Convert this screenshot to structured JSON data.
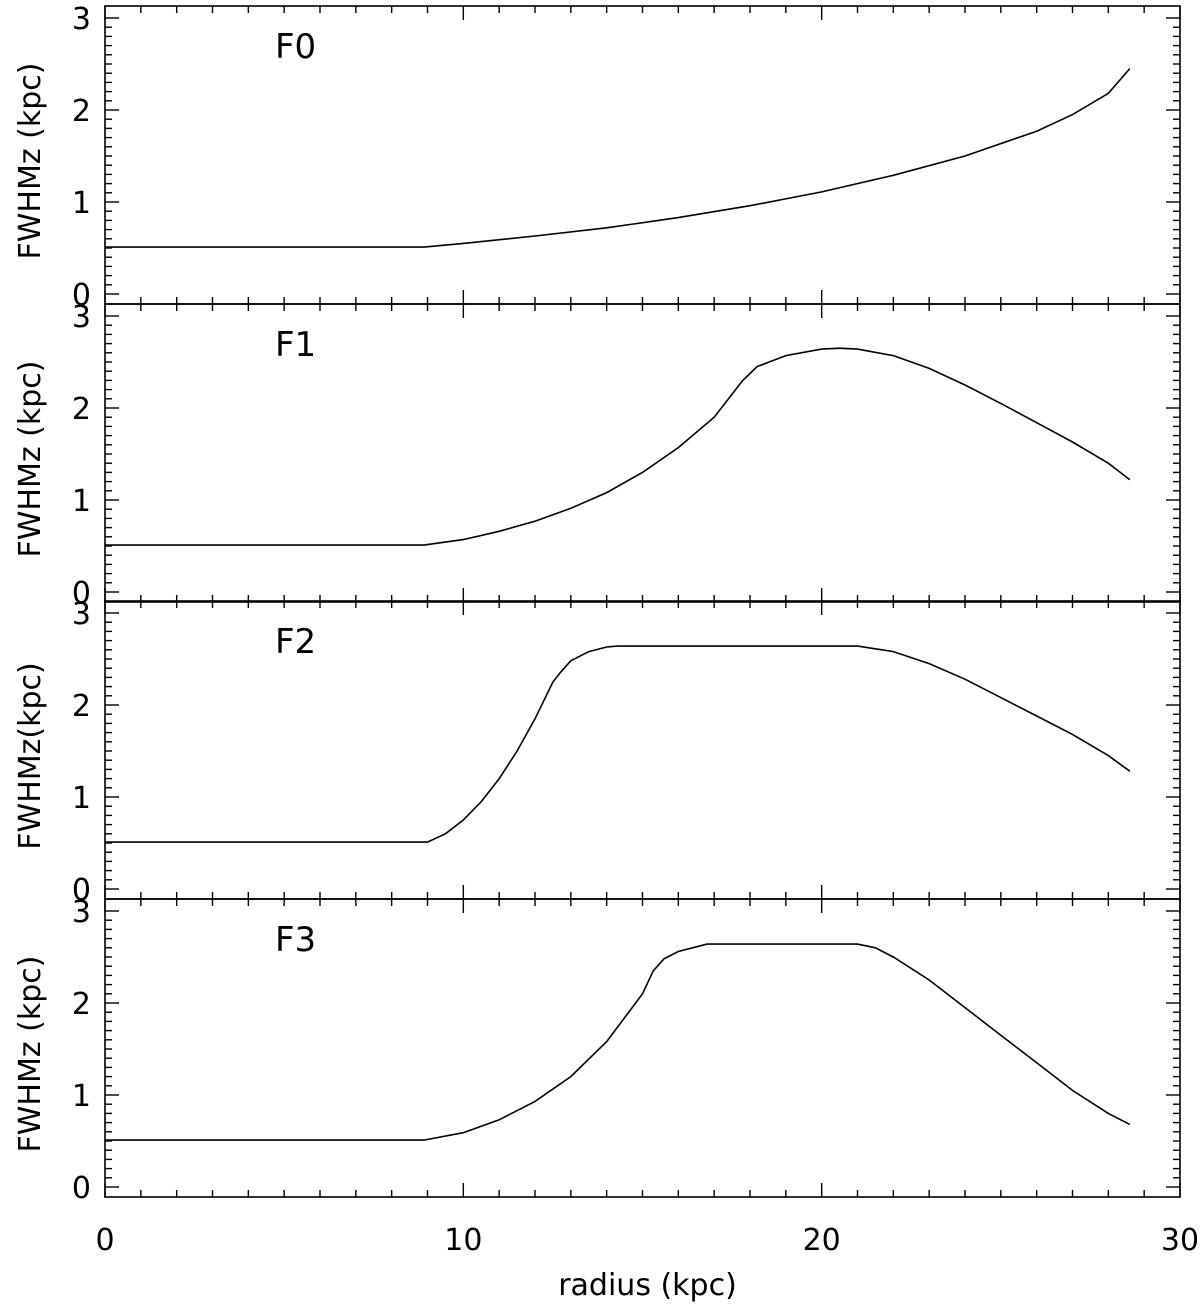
{
  "chart_data": [
    {
      "type": "line",
      "panel_label": "F0",
      "ylabel": "FWHMz  (kpc)",
      "xlim": [
        0,
        30
      ],
      "ylim": [
        0,
        3
      ],
      "yticks": [
        "0",
        "1",
        "2",
        "3"
      ],
      "series": [
        {
          "x": [
            0,
            2,
            4,
            6,
            8,
            8.9,
            10,
            12,
            14,
            16,
            18,
            20,
            22,
            24,
            26,
            27,
            28,
            28.6
          ],
          "y": [
            0.51,
            0.51,
            0.51,
            0.51,
            0.51,
            0.51,
            0.55,
            0.63,
            0.72,
            0.83,
            0.96,
            1.11,
            1.29,
            1.5,
            1.77,
            1.95,
            2.18,
            2.45
          ]
        }
      ]
    },
    {
      "type": "line",
      "panel_label": "F1",
      "ylabel": "FWHMz  (kpc)",
      "xlim": [
        0,
        30
      ],
      "ylim": [
        0,
        3
      ],
      "yticks": [
        "0",
        "1",
        "2",
        "3"
      ],
      "series": [
        {
          "x": [
            0,
            2,
            4,
            6,
            8,
            8.9,
            10,
            11,
            12,
            13,
            14,
            15,
            16,
            17,
            17.8,
            18.2,
            19,
            20,
            20.5,
            21,
            22,
            23,
            24,
            25,
            26,
            27,
            28,
            28.6
          ],
          "y": [
            0.51,
            0.51,
            0.51,
            0.51,
            0.51,
            0.51,
            0.57,
            0.66,
            0.77,
            0.91,
            1.08,
            1.3,
            1.57,
            1.9,
            2.3,
            2.45,
            2.57,
            2.64,
            2.65,
            2.64,
            2.57,
            2.43,
            2.25,
            2.05,
            1.84,
            1.63,
            1.4,
            1.22
          ]
        }
      ]
    },
    {
      "type": "line",
      "panel_label": "F2",
      "ylabel": "FWHMz(kpc)",
      "xlim": [
        0,
        30
      ],
      "ylim": [
        0,
        3
      ],
      "yticks": [
        "0",
        "1",
        "2",
        "3"
      ],
      "series": [
        {
          "x": [
            0,
            2,
            4,
            6,
            8,
            9,
            9.5,
            10,
            10.5,
            11,
            11.5,
            12,
            12.5,
            12.7,
            13,
            13.5,
            14,
            14.3,
            16,
            18,
            20,
            21,
            22,
            23,
            24,
            25,
            26,
            27,
            28,
            28.6
          ],
          "y": [
            0.51,
            0.51,
            0.51,
            0.51,
            0.51,
            0.51,
            0.6,
            0.75,
            0.95,
            1.2,
            1.5,
            1.85,
            2.25,
            2.35,
            2.48,
            2.58,
            2.63,
            2.64,
            2.64,
            2.64,
            2.64,
            2.64,
            2.58,
            2.45,
            2.28,
            2.08,
            1.88,
            1.68,
            1.45,
            1.28
          ]
        }
      ]
    },
    {
      "type": "line",
      "panel_label": "F3",
      "ylabel": "FWHMz  (kpc)",
      "xlim": [
        0,
        30
      ],
      "ylim": [
        0,
        3
      ],
      "yticks": [
        "0",
        "1",
        "2",
        "3"
      ],
      "series": [
        {
          "x": [
            0,
            2,
            4,
            6,
            8,
            8.9,
            10,
            11,
            12,
            13,
            14,
            15,
            15.3,
            15.6,
            16,
            16.8,
            18,
            20,
            21,
            21.5,
            22,
            23,
            24,
            25,
            26,
            27,
            28,
            28.6
          ],
          "y": [
            0.51,
            0.51,
            0.51,
            0.51,
            0.51,
            0.51,
            0.59,
            0.73,
            0.93,
            1.2,
            1.58,
            2.1,
            2.35,
            2.48,
            2.56,
            2.64,
            2.64,
            2.64,
            2.64,
            2.6,
            2.5,
            2.25,
            1.95,
            1.65,
            1.35,
            1.05,
            0.8,
            0.68
          ]
        }
      ]
    }
  ],
  "x_axis": {
    "label": "radius (kpc)",
    "ticks": [
      "0",
      "10",
      "20",
      "30"
    ],
    "range": [
      0,
      30
    ]
  },
  "style": {
    "line_color": "#000000",
    "background": "#ffffff"
  }
}
